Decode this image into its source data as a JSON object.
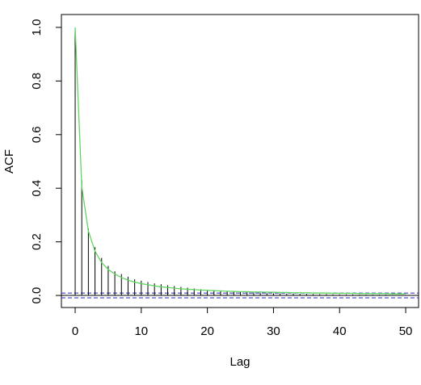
{
  "chart_data": {
    "type": "acf",
    "x_label": "Lag",
    "y_label": "ACF",
    "x": [
      0,
      1,
      2,
      3,
      4,
      5,
      6,
      7,
      8,
      9,
      10,
      11,
      12,
      13,
      14,
      15,
      16,
      17,
      18,
      19,
      20,
      21,
      22,
      23,
      24,
      25,
      26,
      27,
      28,
      29,
      30,
      31,
      32,
      33,
      34,
      35,
      36,
      37,
      38,
      39,
      40,
      41,
      42,
      43,
      44,
      45,
      46,
      47,
      48,
      49,
      50
    ],
    "series": [
      {
        "type": "bar",
        "color": "#000000",
        "values": [
          1,
          0.43,
          0.25,
          0.18,
          0.14,
          0.11,
          0.09,
          0.08,
          0.07,
          0.06,
          0.055,
          0.05,
          0.045,
          0.042,
          0.038,
          0.035,
          0.032,
          0.029,
          0.026,
          0.023,
          0.021,
          0.019,
          0.017,
          0.015,
          0.014,
          0.013,
          0.012,
          0.011,
          0.01,
          0.009,
          0.008,
          0.008,
          0.007,
          0.007,
          0.006,
          0.006,
          0.005,
          0.005,
          0.005,
          0.004,
          0.004,
          0.004,
          0.004,
          0.003,
          0.003,
          0.003,
          0.003,
          0.003,
          0.002,
          0.002,
          0.002
        ]
      },
      {
        "type": "line",
        "color": "#5fd65f",
        "values": [
          1,
          0.406,
          0.24,
          0.165,
          0.123,
          0.097,
          0.08,
          0.067,
          0.057,
          0.05,
          0.044,
          0.04,
          0.036,
          0.032,
          0.03,
          0.027,
          0.025,
          0.023,
          0.022,
          0.02,
          0.019,
          0.018,
          0.017,
          0.016,
          0.015,
          0.014,
          0.014,
          0.013,
          0.013,
          0.012,
          0.012,
          0.011,
          0.011,
          0.01,
          0.01,
          0.01,
          0.009,
          0.009,
          0.009,
          0.008,
          0.008,
          0.008,
          0.008,
          0.007,
          0.007,
          0.007,
          0.007,
          0.007,
          0.006,
          0.006,
          0.006
        ]
      }
    ],
    "ci": [
      -0.009,
      0.009
    ],
    "ci_color": "#2222cc",
    "xlim": [
      -2.08,
      51.95
    ],
    "ylim": [
      -0.045,
      1.048
    ],
    "xticks": [
      0,
      10,
      20,
      30,
      40,
      50
    ],
    "yticks": [
      {
        "value": 0,
        "label": "0.0"
      },
      {
        "value": 0.2,
        "label": "0.2"
      },
      {
        "value": 0.4,
        "label": "0.4"
      },
      {
        "value": 0.6,
        "label": "0.6"
      },
      {
        "value": 0.8,
        "label": "0.8"
      },
      {
        "value": 1,
        "label": "1.0"
      }
    ]
  }
}
